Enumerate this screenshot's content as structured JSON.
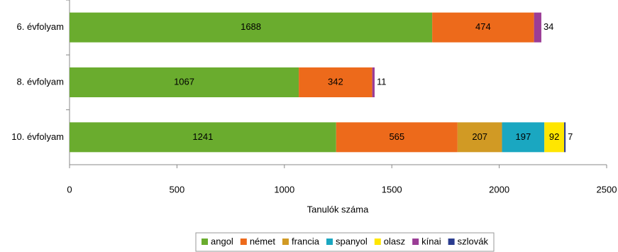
{
  "chart_data": {
    "type": "bar",
    "orientation": "horizontal",
    "stacked": true,
    "x_label": "Tanulók száma",
    "categories": [
      "6. évfolyam",
      "8. évfolyam",
      "10. évfolyam"
    ],
    "series": [
      {
        "name": "angol",
        "color": "#6aac2e",
        "values": [
          1688,
          1067,
          1241
        ]
      },
      {
        "name": "német",
        "color": "#ed6a1b",
        "values": [
          474,
          342,
          565
        ]
      },
      {
        "name": "francia",
        "color": "#d19a24",
        "values": [
          null,
          null,
          207
        ]
      },
      {
        "name": "spanyol",
        "color": "#1aa7c1",
        "values": [
          null,
          null,
          197
        ]
      },
      {
        "name": "olasz",
        "color": "#ffe600",
        "values": [
          null,
          null,
          92
        ]
      },
      {
        "name": "kínai",
        "color": "#9b3d96",
        "values": [
          34,
          11,
          null
        ]
      },
      {
        "name": "szlovák",
        "color": "#2a3c8f",
        "values": [
          null,
          null,
          7
        ]
      }
    ],
    "xlim": [
      0,
      2500
    ],
    "xticks": [
      0,
      500,
      1000,
      1500,
      2000,
      2500
    ],
    "legend": "bottom"
  }
}
